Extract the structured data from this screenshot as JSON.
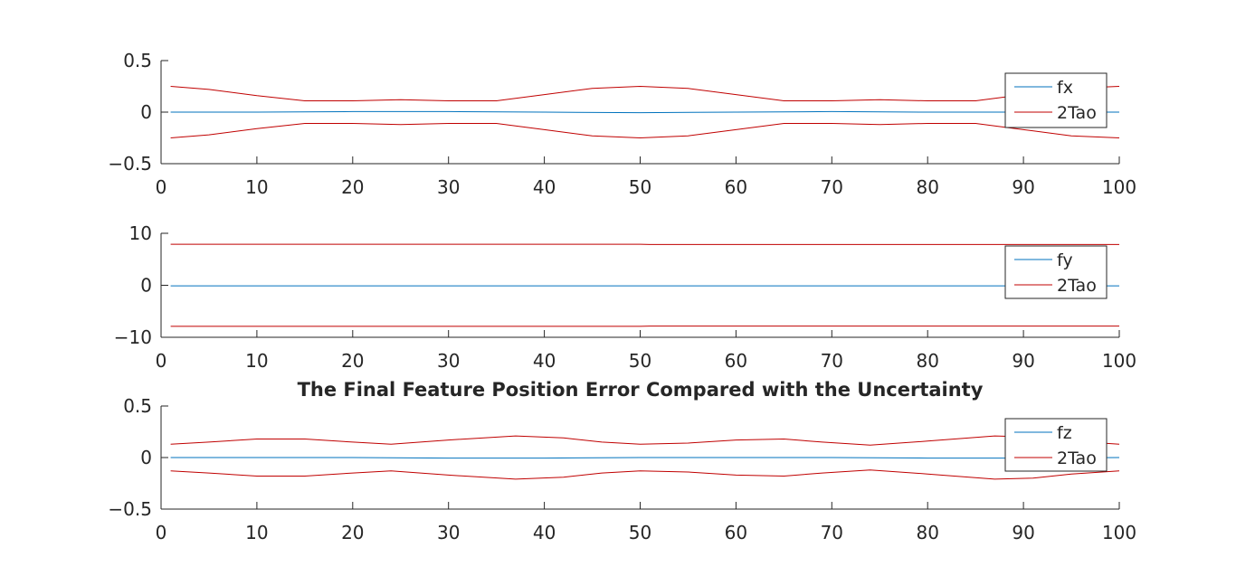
{
  "chart_data": [
    {
      "type": "line",
      "title": "",
      "xlabel": "",
      "ylabel": "",
      "xlim": [
        0,
        100
      ],
      "ylim": [
        -0.5,
        0.5
      ],
      "x_ticks": [
        0,
        10,
        20,
        30,
        40,
        50,
        60,
        70,
        80,
        90,
        100
      ],
      "y_ticks": [
        0.5,
        0,
        -0.5
      ],
      "y_tick_labels": [
        "0.5",
        "0",
        "−0.5"
      ],
      "grid": false,
      "legend_position": "top-right",
      "series": [
        {
          "name": "fx",
          "color": "#0072BD",
          "x": [
            1,
            10,
            20,
            30,
            40,
            50,
            60,
            70,
            80,
            90,
            100
          ],
          "y": [
            0,
            0,
            0.005,
            0.005,
            0,
            -0.005,
            0,
            0.005,
            0,
            0,
            0
          ]
        },
        {
          "name": "2Tao",
          "color": "#C00000",
          "x": [
            1,
            5,
            10,
            15,
            20,
            25,
            30,
            35,
            40,
            45,
            50,
            55,
            60,
            65,
            70,
            75,
            80,
            85,
            90,
            95,
            100
          ],
          "y": [
            0.25,
            0.22,
            0.16,
            0.11,
            0.11,
            0.12,
            0.11,
            0.11,
            0.17,
            0.23,
            0.25,
            0.23,
            0.17,
            0.11,
            0.11,
            0.12,
            0.11,
            0.11,
            0.17,
            0.23,
            0.25
          ]
        },
        {
          "name": "",
          "color": "#C00000",
          "x": [
            1,
            5,
            10,
            15,
            20,
            25,
            30,
            35,
            40,
            45,
            50,
            55,
            60,
            65,
            70,
            75,
            80,
            85,
            90,
            95,
            100
          ],
          "y": [
            -0.25,
            -0.22,
            -0.16,
            -0.11,
            -0.11,
            -0.12,
            -0.11,
            -0.11,
            -0.17,
            -0.23,
            -0.25,
            -0.23,
            -0.17,
            -0.11,
            -0.11,
            -0.12,
            -0.11,
            -0.11,
            -0.17,
            -0.23,
            -0.25
          ]
        }
      ]
    },
    {
      "type": "line",
      "title": "",
      "xlabel": "",
      "ylabel": "",
      "xlim": [
        0,
        100
      ],
      "ylim": [
        -10,
        10
      ],
      "x_ticks": [
        0,
        10,
        20,
        30,
        40,
        50,
        60,
        70,
        80,
        90,
        100
      ],
      "y_ticks": [
        10,
        0,
        -10
      ],
      "y_tick_labels": [
        "10",
        "0",
        "−10"
      ],
      "grid": false,
      "legend_position": "right",
      "series": [
        {
          "name": "fy",
          "color": "#0072BD",
          "x": [
            1,
            50,
            100
          ],
          "y": [
            -0.1,
            -0.1,
            -0.1
          ]
        },
        {
          "name": "2Tao",
          "color": "#C00000",
          "x": [
            1,
            50,
            51,
            100
          ],
          "y": [
            7.9,
            7.9,
            7.85,
            7.85
          ]
        },
        {
          "name": "",
          "color": "#C00000",
          "x": [
            1,
            50,
            51,
            100
          ],
          "y": [
            -7.9,
            -7.9,
            -7.85,
            -7.85
          ]
        }
      ]
    },
    {
      "type": "line",
      "title": "The Final Feature Position Error Compared with the Uncertainty",
      "xlabel": "",
      "ylabel": "",
      "xlim": [
        0,
        100
      ],
      "ylim": [
        -0.5,
        0.5
      ],
      "x_ticks": [
        0,
        10,
        20,
        30,
        40,
        50,
        60,
        70,
        80,
        90,
        100
      ],
      "y_ticks": [
        0.5,
        0,
        -0.5
      ],
      "y_tick_labels": [
        "0.5",
        "0",
        "−0.5"
      ],
      "grid": false,
      "legend_position": "top-right",
      "series": [
        {
          "name": "fz",
          "color": "#0072BD",
          "x": [
            1,
            10,
            20,
            30,
            40,
            50,
            60,
            70,
            80,
            90,
            100
          ],
          "y": [
            0,
            0,
            0,
            -0.005,
            -0.005,
            0,
            0,
            0,
            -0.005,
            -0.005,
            0
          ]
        },
        {
          "name": "2Tao",
          "color": "#C00000",
          "x": [
            1,
            5,
            10,
            15,
            20,
            24,
            30,
            37,
            42,
            46,
            50,
            55,
            60,
            65,
            69,
            74,
            80,
            87,
            91,
            95,
            100
          ],
          "y": [
            0.13,
            0.15,
            0.18,
            0.18,
            0.15,
            0.13,
            0.17,
            0.21,
            0.19,
            0.15,
            0.13,
            0.14,
            0.17,
            0.18,
            0.15,
            0.12,
            0.16,
            0.21,
            0.2,
            0.16,
            0.13
          ]
        },
        {
          "name": "",
          "color": "#C00000",
          "x": [
            1,
            5,
            10,
            15,
            20,
            24,
            30,
            37,
            42,
            46,
            50,
            55,
            60,
            65,
            69,
            74,
            80,
            87,
            91,
            95,
            100
          ],
          "y": [
            -0.13,
            -0.15,
            -0.18,
            -0.18,
            -0.15,
            -0.13,
            -0.17,
            -0.21,
            -0.19,
            -0.15,
            -0.13,
            -0.14,
            -0.17,
            -0.18,
            -0.15,
            -0.12,
            -0.16,
            -0.21,
            -0.2,
            -0.16,
            -0.13
          ]
        }
      ]
    }
  ]
}
